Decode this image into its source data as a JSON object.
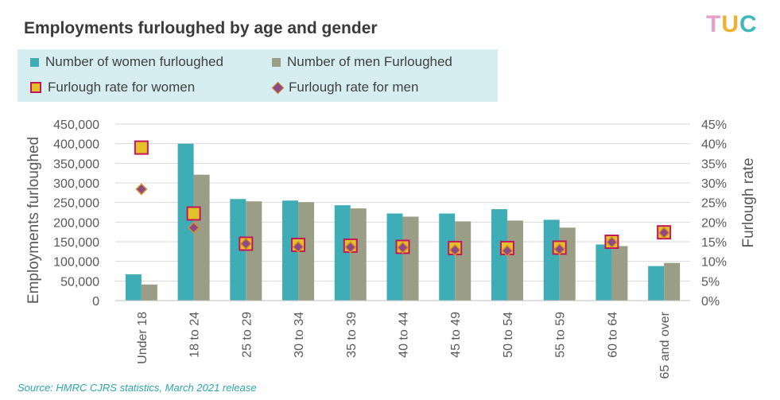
{
  "title": "Employments furloughed by age and gender",
  "logo": {
    "l1": "T",
    "l2": "U",
    "l3": "C"
  },
  "source": "Source: HMRC CJRS statistics, March 2021 release",
  "legend": {
    "women_bar": "Number of women furloughed",
    "men_bar": "Number of men Furloughed",
    "women_rate": "Furlough rate for women",
    "men_rate": "Furlough rate for men"
  },
  "colors": {
    "women_bar": "#3eadb5",
    "men_bar": "#9b9e86",
    "women_rate_fill": "#e3c12a",
    "women_rate_edge": "#c2185b",
    "men_rate_fill": "#8e4a84",
    "men_rate_edge": "#d88d2a"
  },
  "chart_data": {
    "type": "bar",
    "categories": [
      "Under 18",
      "18 to 24",
      "25 to 29",
      "30 to 34",
      "35 to 39",
      "40 to 44",
      "45 to 49",
      "50 to 54",
      "55 to 59",
      "60 to 64",
      "65 and over"
    ],
    "series": [
      {
        "name": "Number of women furloughed",
        "axis": "left",
        "values": [
          67000,
          400000,
          259000,
          255000,
          243000,
          222000,
          222000,
          233000,
          206000,
          143000,
          88000
        ]
      },
      {
        "name": "Number of men Furloughed",
        "axis": "left",
        "values": [
          41000,
          321000,
          253000,
          251000,
          235000,
          214000,
          202000,
          204000,
          186000,
          139000,
          96000
        ]
      },
      {
        "name": "Furlough rate for women",
        "axis": "right",
        "type": "scatter",
        "values": [
          0.39,
          0.222,
          0.145,
          0.142,
          0.14,
          0.137,
          0.134,
          0.134,
          0.135,
          0.15,
          0.174
        ]
      },
      {
        "name": "Furlough rate for men",
        "axis": "right",
        "type": "scatter",
        "values": [
          0.284,
          0.186,
          0.145,
          0.137,
          0.136,
          0.135,
          0.129,
          0.127,
          0.131,
          0.149,
          0.173
        ]
      }
    ],
    "ylabel": "Employments furloughed",
    "y2label": "Furlough rate",
    "ylim": [
      0,
      450000
    ],
    "y2lim": [
      0,
      0.45
    ],
    "yticks": [
      "0",
      "50,000",
      "100,000",
      "150,000",
      "200,000",
      "250,000",
      "300,000",
      "350,000",
      "400,000",
      "450,000"
    ],
    "y2ticks": [
      "0%",
      "5%",
      "10%",
      "15%",
      "20%",
      "25%",
      "30%",
      "35%",
      "40%",
      "45%"
    ],
    "grid": true,
    "legend_position": "top-left"
  }
}
